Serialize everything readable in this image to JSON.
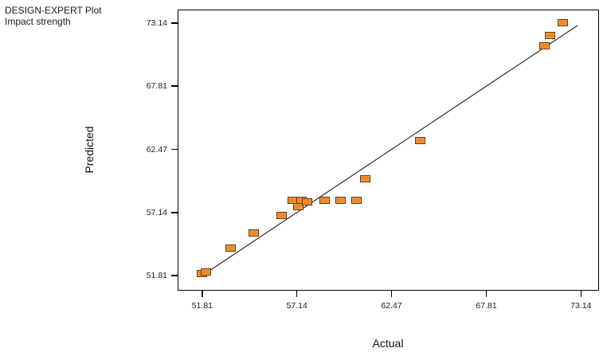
{
  "chart_data": {
    "type": "scatter",
    "annotation": [
      "DESIGN-EXPERT Plot",
      "Impact strength"
    ],
    "xlabel": "Actual",
    "ylabel": "Predicted",
    "x_tick_labels": [
      "51.81",
      "57.14",
      "62.47",
      "67.81",
      "73.14"
    ],
    "y_tick_labels": [
      "51.81",
      "57.14",
      "62.47",
      "67.81",
      "73.14"
    ],
    "x_tick_values": [
      51.81,
      57.14,
      62.47,
      67.81,
      73.14
    ],
    "y_tick_values": [
      51.81,
      57.14,
      62.47,
      67.81,
      73.14
    ],
    "xlim": [
      50.47,
      74.2
    ],
    "ylim": [
      50.46,
      74.22
    ],
    "grid": false,
    "legend": "none",
    "reference_line": {
      "type": "y=x",
      "x1": 51.85,
      "y1": 51.85,
      "x2": 72.95,
      "y2": 72.95
    },
    "points": [
      {
        "actual": 51.8,
        "predicted": 52.0
      },
      {
        "actual": 52.0,
        "predicted": 52.1
      },
      {
        "actual": 53.4,
        "predicted": 54.1
      },
      {
        "actual": 54.7,
        "predicted": 55.4
      },
      {
        "actual": 56.3,
        "predicted": 56.9
      },
      {
        "actual": 56.9,
        "predicted": 58.2
      },
      {
        "actual": 57.4,
        "predicted": 58.2
      },
      {
        "actual": 57.2,
        "predicted": 57.6
      },
      {
        "actual": 57.7,
        "predicted": 58.0
      },
      {
        "actual": 58.7,
        "predicted": 58.2
      },
      {
        "actual": 59.6,
        "predicted": 58.2
      },
      {
        "actual": 60.5,
        "predicted": 58.2
      },
      {
        "actual": 61.0,
        "predicted": 60.0
      },
      {
        "actual": 64.1,
        "predicted": 63.2
      },
      {
        "actual": 71.1,
        "predicted": 71.2
      },
      {
        "actual": 71.4,
        "predicted": 72.1
      },
      {
        "actual": 72.1,
        "predicted": 73.2
      }
    ],
    "marker": {
      "shape": "square",
      "fill": "#F6871F",
      "border": "#4A3A2A"
    },
    "colors": {
      "axis": "#000000",
      "reference_line": "#2B2B2B",
      "text": "#111111"
    }
  }
}
